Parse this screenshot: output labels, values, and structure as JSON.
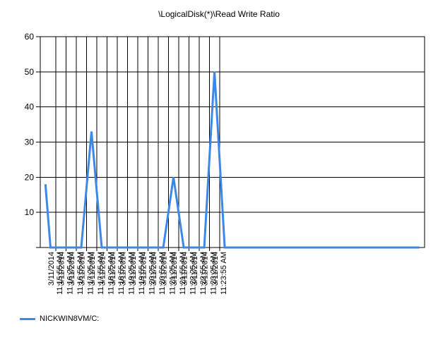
{
  "chart_data": {
    "type": "line",
    "title": "\\LogicalDisk(*)\\Read Write Ratio",
    "xlabel": "",
    "ylabel": "",
    "ylim": [
      0,
      60
    ],
    "yticks": [
      10,
      20,
      30,
      40,
      50,
      60
    ],
    "grid": true,
    "legend_position": "bottom-left",
    "categories": [
      "3/11/2014 11:15:55 AM",
      "3/11/2014 11:16:25 AM",
      "3/11/2014 11:16:55 AM",
      "3/11/2014 11:17:25 AM",
      "3/11/2014 11:17:55 AM",
      "3/11/2014 11:18:25 AM",
      "3/11/2014 11:18:55 AM",
      "3/11/2014 11:19:25 AM",
      "3/11/2014 11:19:55 AM",
      "3/11/2014 11:20:25 AM",
      "3/11/2014 11:20:55 AM",
      "3/11/2014 11:21:25 AM",
      "3/11/2014 11:21:55 AM",
      "3/11/2014 11:22:25 AM",
      "3/11/2014 11:22:55 AM",
      "3/11/2014 11:23:25 AM",
      "3/11/2014 11:23:55 AM"
    ],
    "series": [
      {
        "name": "NICKWIN8VM/C:",
        "color": "#3c88e8",
        "points": [
          {
            "x": "11:15:25 AM",
            "y": 18
          },
          {
            "x": "11:15:40 AM",
            "y": 0
          },
          {
            "x": "11:16:10 AM",
            "y": 0
          },
          {
            "x": "11:16:40 AM",
            "y": 0
          },
          {
            "x": "11:17:10 AM",
            "y": 0
          },
          {
            "x": "11:17:40 AM",
            "y": 33
          },
          {
            "x": "11:18:10 AM",
            "y": 0
          },
          {
            "x": "11:18:40 AM",
            "y": 0
          },
          {
            "x": "11:19:10 AM",
            "y": 0
          },
          {
            "x": "11:19:40 AM",
            "y": 0
          },
          {
            "x": "11:20:10 AM",
            "y": 0
          },
          {
            "x": "11:20:40 AM",
            "y": 0
          },
          {
            "x": "11:21:10 AM",
            "y": 0
          },
          {
            "x": "11:21:40 AM",
            "y": 20
          },
          {
            "x": "11:22:10 AM",
            "y": 0
          },
          {
            "x": "11:22:40 AM",
            "y": 0
          },
          {
            "x": "11:23:10 AM",
            "y": 0
          },
          {
            "x": "11:23:40 AM",
            "y": 50
          },
          {
            "x": "11:24:10 AM",
            "y": 0
          },
          {
            "x": "11:24:40 AM",
            "y": 0
          },
          {
            "x": "11:25:10 AM",
            "y": 0
          },
          {
            "x": "11:25:40 AM",
            "y": 0
          },
          {
            "x": "11:26:10 AM",
            "y": 0
          },
          {
            "x": "11:26:40 AM",
            "y": 0
          },
          {
            "x": "11:27:10 AM",
            "y": 0
          },
          {
            "x": "11:27:40 AM",
            "y": 0
          },
          {
            "x": "11:28:10 AM",
            "y": 0
          },
          {
            "x": "11:28:40 AM",
            "y": 0
          },
          {
            "x": "11:29:10 AM",
            "y": 0
          },
          {
            "x": "11:29:40 AM",
            "y": 0
          },
          {
            "x": "11:30:10 AM",
            "y": 0
          },
          {
            "x": "11:30:40 AM",
            "y": 0
          },
          {
            "x": "11:31:10 AM",
            "y": 0
          },
          {
            "x": "11:31:40 AM",
            "y": 0
          },
          {
            "x": "11:32:10 AM",
            "y": 0
          },
          {
            "x": "11:32:40 AM",
            "y": 0
          },
          {
            "x": "11:33:10 AM",
            "y": 0
          },
          {
            "x": "11:33:40 AM",
            "y": 0
          }
        ]
      }
    ]
  }
}
